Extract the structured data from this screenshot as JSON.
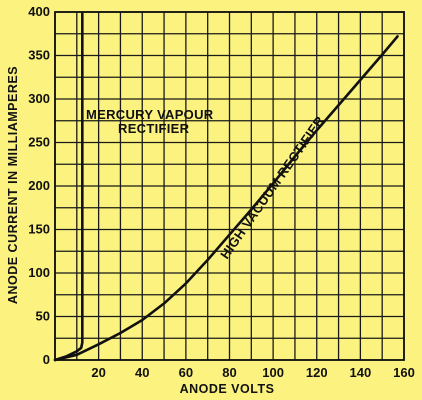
{
  "chart_data": {
    "type": "line",
    "xlabel": "ANODE VOLTS",
    "ylabel": "ANODE CURRENT IN MILLIAMPERES",
    "xlim": [
      0,
      160
    ],
    "ylim": [
      0,
      400
    ],
    "xticks": [
      "20",
      "40",
      "60",
      "80",
      "100",
      "120",
      "140",
      "160"
    ],
    "yticks": [
      "0",
      "50",
      "100",
      "150",
      "200",
      "250",
      "300",
      "350",
      "400"
    ],
    "grid": true,
    "background": "#fbf27f",
    "series": [
      {
        "name": "HIGH VACUUM RECTIFIER",
        "x": [
          0,
          10,
          20,
          30,
          40,
          50,
          60,
          70,
          80,
          90,
          100,
          110,
          120,
          130,
          140,
          150,
          157
        ],
        "y": [
          0,
          6,
          18,
          31,
          46,
          65,
          88,
          115,
          144,
          173,
          203,
          234,
          264,
          293,
          322,
          351,
          372
        ]
      },
      {
        "name": "MERCURY VAPOUR RECTIFIER",
        "x": [
          0,
          5,
          10,
          12,
          12.5,
          12.5
        ],
        "y": [
          0,
          4,
          10,
          14,
          20,
          398
        ]
      }
    ],
    "annotations": [
      {
        "text_line1": "MERCURY VAPOUR",
        "text_line2": "RECTIFIER"
      },
      {
        "text": "HIGH VACUUM RECTIFIER"
      }
    ]
  }
}
